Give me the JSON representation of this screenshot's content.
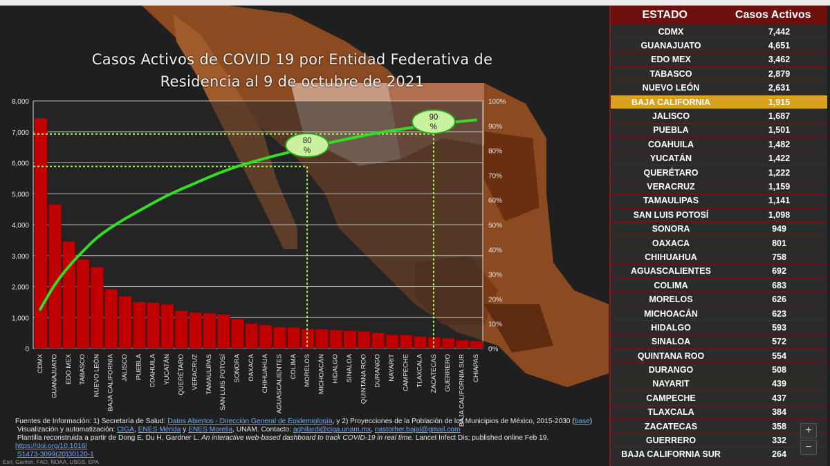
{
  "title": "Casos Activos de COVID 19 por Entidad Federativa de Residencia al 9 de octubre de 2021",
  "colors": {
    "bar": "#c00000",
    "curve": "#33dd22",
    "guide": "#a8ff5a",
    "highlight": "#d9a21e",
    "header": "#6e1010"
  },
  "chart_data": {
    "type": "bar",
    "title": "Casos Activos de COVID 19 por Entidad Federativa de Residencia al 9 de octubre de 2021",
    "categories": [
      "CDMX",
      "GUANAJUATO",
      "EDO MEX",
      "TABASCO",
      "NUEVO LEÓN",
      "BAJA CALIFORNIA",
      "JALISCO",
      "PUEBLA",
      "COAHUILA",
      "YUCATÁN",
      "QUERÉTARO",
      "VERACRUZ",
      "TAMAULIPAS",
      "SAN LUIS POTOSÍ",
      "SONORA",
      "OAXACA",
      "CHIHUAHUA",
      "AGUASCALIENTES",
      "COLIMA",
      "MORELOS",
      "MICHOACÁN",
      "HIDALGO",
      "SINALOA",
      "QUINTANA ROO",
      "DURANGO",
      "NAYARIT",
      "CAMPECHE",
      "TLAXCALA",
      "ZACATECAS",
      "GUERRERO",
      "BAJA CALIFORNIA SUR",
      "CHIAPAS"
    ],
    "values": [
      7442,
      4651,
      3462,
      2879,
      2631,
      1915,
      1687,
      1501,
      1482,
      1422,
      1222,
      1159,
      1141,
      1098,
      949,
      801,
      758,
      692,
      683,
      626,
      623,
      593,
      572,
      554,
      508,
      439,
      437,
      384,
      358,
      332,
      264,
      240
    ],
    "cumulative_pct": [
      15.8,
      25.7,
      33.0,
      39.1,
      44.7,
      48.8,
      52.3,
      55.5,
      58.7,
      61.7,
      64.3,
      66.7,
      69.2,
      71.5,
      73.5,
      75.2,
      76.8,
      78.3,
      79.7,
      81.0,
      82.4,
      83.6,
      84.8,
      86.0,
      87.1,
      88.0,
      88.9,
      89.7,
      90.5,
      91.2,
      91.8,
      92.3
    ],
    "ylim": [
      0,
      8000
    ],
    "yticks": [
      "0",
      "1,000",
      "2,000",
      "3,000",
      "4,000",
      "5,000",
      "6,000",
      "7,000",
      "8,000"
    ],
    "y2ticks": [
      "0%",
      "10%",
      "20%",
      "30%",
      "40%",
      "50%",
      "60%",
      "70%",
      "80%",
      "90%",
      "100%"
    ],
    "markers": [
      {
        "label_top": "80",
        "label_bottom": "%"
      },
      {
        "label_top": "90",
        "label_bottom": "%"
      }
    ],
    "grid": true
  },
  "table": {
    "headers": [
      "ESTADO",
      "Casos Activos"
    ],
    "rows": [
      {
        "estado": "CDMX",
        "casos": "7,442"
      },
      {
        "estado": "GUANAJUATO",
        "casos": "4,651"
      },
      {
        "estado": "EDO MEX",
        "casos": "3,462"
      },
      {
        "estado": "TABASCO",
        "casos": "2,879"
      },
      {
        "estado": "NUEVO LEÓN",
        "casos": "2,631"
      },
      {
        "estado": "BAJA CALIFORNIA",
        "casos": "1,915"
      },
      {
        "estado": "JALISCO",
        "casos": "1,687"
      },
      {
        "estado": "PUEBLA",
        "casos": "1,501"
      },
      {
        "estado": "COAHUILA",
        "casos": "1,482"
      },
      {
        "estado": "YUCATÁN",
        "casos": "1,422"
      },
      {
        "estado": "QUERÉTARO",
        "casos": "1,222"
      },
      {
        "estado": "VERACRUZ",
        "casos": "1,159"
      },
      {
        "estado": "TAMAULIPAS",
        "casos": "1,141"
      },
      {
        "estado": "SAN LUIS POTOSÍ",
        "casos": "1,098"
      },
      {
        "estado": "SONORA",
        "casos": "949"
      },
      {
        "estado": "OAXACA",
        "casos": "801"
      },
      {
        "estado": "CHIHUAHUA",
        "casos": "758"
      },
      {
        "estado": "AGUASCALIENTES",
        "casos": "692"
      },
      {
        "estado": "COLIMA",
        "casos": "683"
      },
      {
        "estado": "MORELOS",
        "casos": "626"
      },
      {
        "estado": "MICHOACÁN",
        "casos": "623"
      },
      {
        "estado": "HIDALGO",
        "casos": "593"
      },
      {
        "estado": "SINALOA",
        "casos": "572"
      },
      {
        "estado": "QUINTANA ROO",
        "casos": "554"
      },
      {
        "estado": "DURANGO",
        "casos": "508"
      },
      {
        "estado": "NAYARIT",
        "casos": "439"
      },
      {
        "estado": "CAMPECHE",
        "casos": "437"
      },
      {
        "estado": "TLAXCALA",
        "casos": "384"
      },
      {
        "estado": "ZACATECAS",
        "casos": "358"
      },
      {
        "estado": "GUERRERO",
        "casos": "332"
      },
      {
        "estado": "BAJA CALIFORNIA SUR",
        "casos": "264"
      }
    ],
    "highlight_row": "BAJA CALIFORNIA"
  },
  "sources": {
    "line1_prefix": "Fuentes de Información: 1) Secretaría de Salud: ",
    "line1_link": "Datos Abiertos - Dirección General de Epidemiología",
    "line1_suffix": ", y 2) Proyecciones de la Población de los Municipios de México, 2015-2030 (",
    "line1_link2": "base",
    "line1_end": ")",
    "line2_prefix": "Visualización y automatización: ",
    "line2_link1": "CIGA",
    "line2_sep1": ", ",
    "line2_link2": "ENES Mérida",
    "line2_sep2": " y ",
    "line2_link3": "ENES Morelia",
    "line2_mid": ", UNAM. Contacto: ",
    "line2_link4": "aghilardi@ciga.unam.mx",
    "line2_sep3": ", ",
    "line2_link5": "nastorher.bajal@gmail.com",
    "line3_prefix": "Plantilla reconstruida a partir de Dong E, Du H, Gardner L. ",
    "line3_italic": "An interactive web-based dashboard to track COVID-19 in real time.",
    "line3_suffix": " Lancet Infect Dis; published online Feb 19. ",
    "line3_link": "https://doi.org/10.1016/",
    "line4_link": "S1473-3099(20)30120-1"
  },
  "credits": "Esri, Garmin, FAO, NOAA, USGS, EPA",
  "zoom": {
    "in": "+",
    "out": "−"
  }
}
